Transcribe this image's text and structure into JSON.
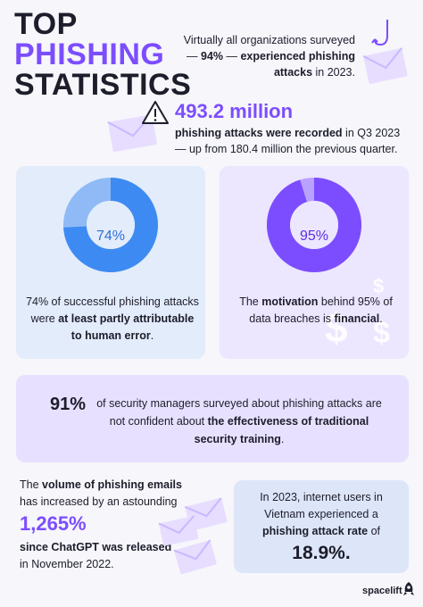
{
  "title": {
    "line1": "TOP",
    "line2": "PHISHING",
    "line3": "STATISTICS"
  },
  "intro": {
    "pre": "Virtually all organizations surveyed",
    "dash1": "— ",
    "pct": "94%",
    "mid": " — ",
    "bold": "experienced phishing attacks",
    "post": " in 2023."
  },
  "million": {
    "number": "493.2 million",
    "bold": "phishing attacks were recorded",
    "post": " in Q3 2023 — up from 180.4 million the previous quarter."
  },
  "human_error": {
    "percent_label": "74%",
    "value": 0.74,
    "pre": "74% of successful phishing attacks were ",
    "bold": "at least partly attributable to human error",
    "post": "."
  },
  "financial": {
    "percent_label": "95%",
    "value": 0.95,
    "pre": "The ",
    "bold1": "motivation",
    "mid": " behind 95% of data breaches is ",
    "bold2": "financial",
    "post": ".",
    "dollar_glyph": "$"
  },
  "security_training": {
    "number": "91%",
    "pre": "of security managers surveyed about phishing attacks are not confident about ",
    "bold": "the effectiveness of traditional security training",
    "post": "."
  },
  "volume": {
    "pre": "The ",
    "bold1": "volume of phishing emails",
    "mid": " has increased by an astounding",
    "number": "1,265%",
    "bold2": "since ChatGPT was released",
    "post": " in November 2022."
  },
  "vietnam": {
    "pre": "In 2023, internet users in Vietnam experienced a ",
    "bold": "phishing attack rate",
    "post": " of",
    "number": "18.9%",
    "number_suffix": "."
  },
  "brand": {
    "name": "spacelift"
  },
  "colors": {
    "purple": "#7c4dff",
    "blue_donut": "#3d8bf2",
    "blue_donut_light": "#8fbaf5",
    "purple_donut": "#7c4dff",
    "purple_donut_light": "#b9a2ff",
    "envelope": "#c9b8ff"
  }
}
